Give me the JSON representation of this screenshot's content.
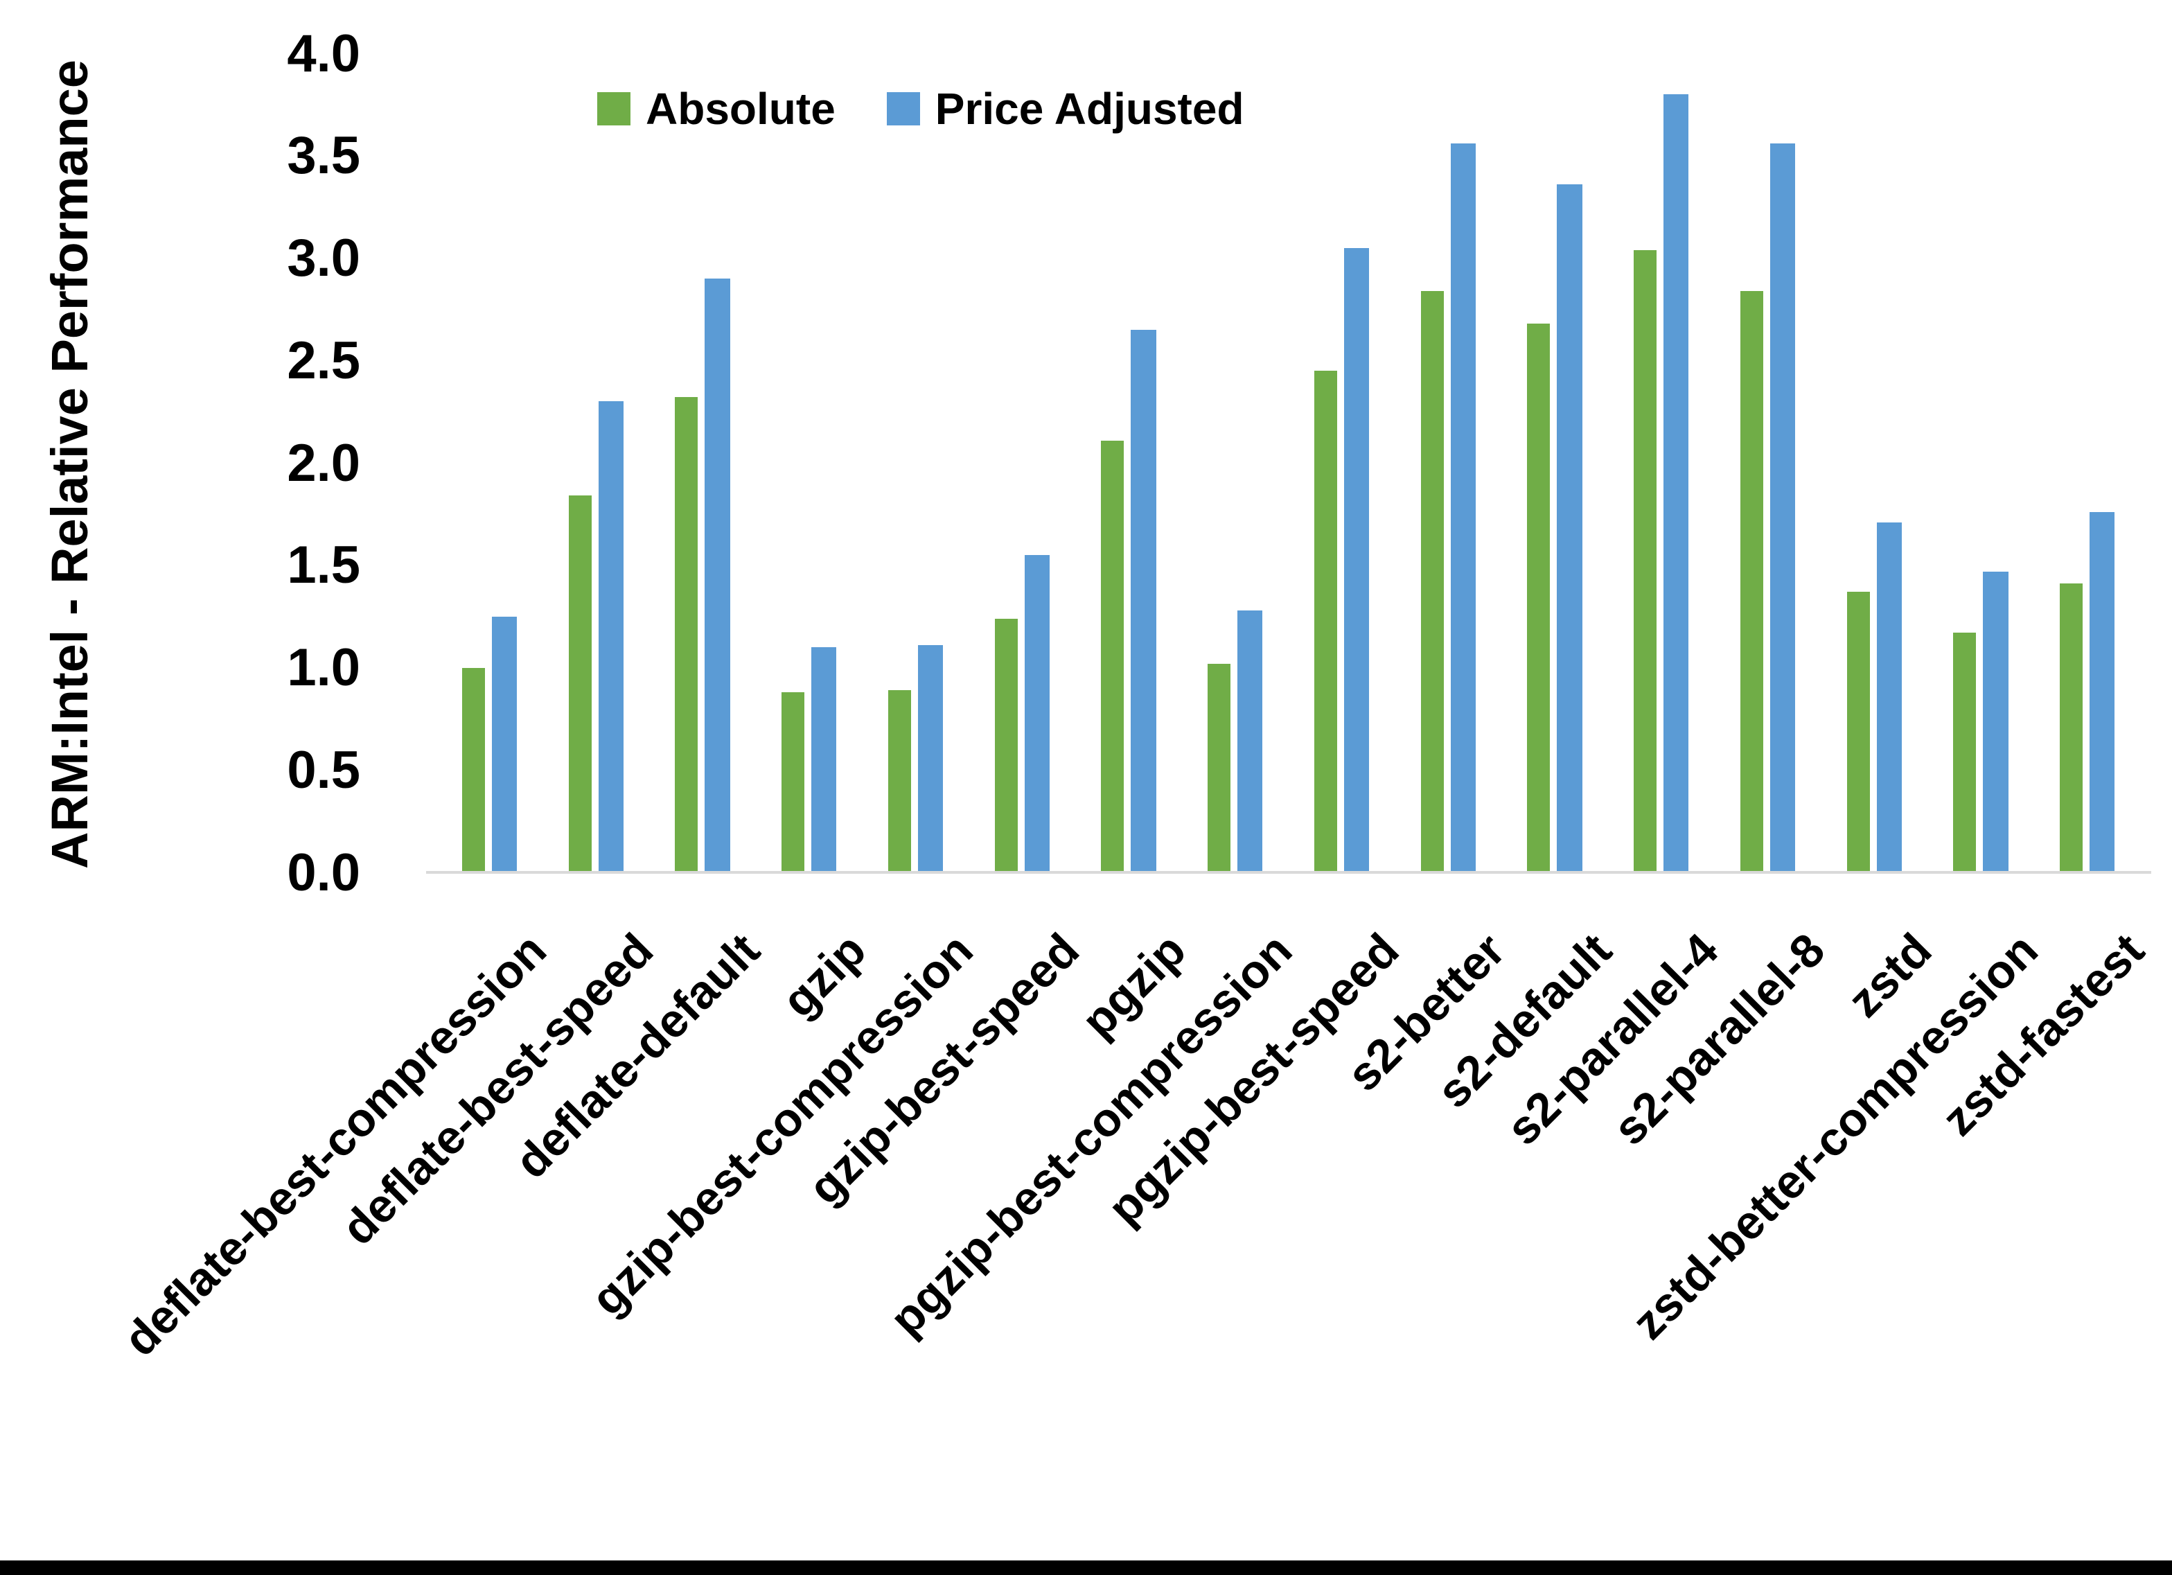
{
  "chart_data": {
    "type": "bar",
    "title": "",
    "xlabel": "",
    "ylabel": "ARM:Intel - Relative Performance",
    "ylim": [
      0.0,
      4.0
    ],
    "ytick_step": 0.5,
    "ytick_labels": [
      "0.0",
      "0.5",
      "1.0",
      "1.5",
      "2.0",
      "2.5",
      "3.0",
      "3.5",
      "4.0"
    ],
    "grid": false,
    "legend_position": "top-center",
    "categories": [
      "deflate-best-compression",
      "deflate-best-speed",
      "deflate-default",
      "gzip",
      "gzip-best-compression",
      "gzip-best-speed",
      "pgzip",
      "pgzip-best-compression",
      "pgzip-best-speed",
      "s2-better",
      "s2-default",
      "s2-parallel-4",
      "s2-parallel-8",
      "zstd",
      "zstd-better-compression",
      "zstd-fastest"
    ],
    "series": [
      {
        "name": "Absolute",
        "color": "#70AD47",
        "values": [
          1.0,
          1.84,
          2.32,
          0.88,
          0.89,
          1.24,
          2.11,
          1.02,
          2.45,
          2.84,
          2.68,
          3.04,
          2.84,
          1.37,
          1.17,
          1.41
        ]
      },
      {
        "name": "Price Adjusted",
        "color": "#5B9BD5",
        "values": [
          1.25,
          2.3,
          2.9,
          1.1,
          1.11,
          1.55,
          2.65,
          1.28,
          3.05,
          3.56,
          3.36,
          3.8,
          3.56,
          1.71,
          1.47,
          1.76
        ]
      }
    ]
  },
  "colors": {
    "axis_line": "#d9d9d9",
    "text": "#000000",
    "background": "#ffffff",
    "bottom_border": "#000000"
  }
}
